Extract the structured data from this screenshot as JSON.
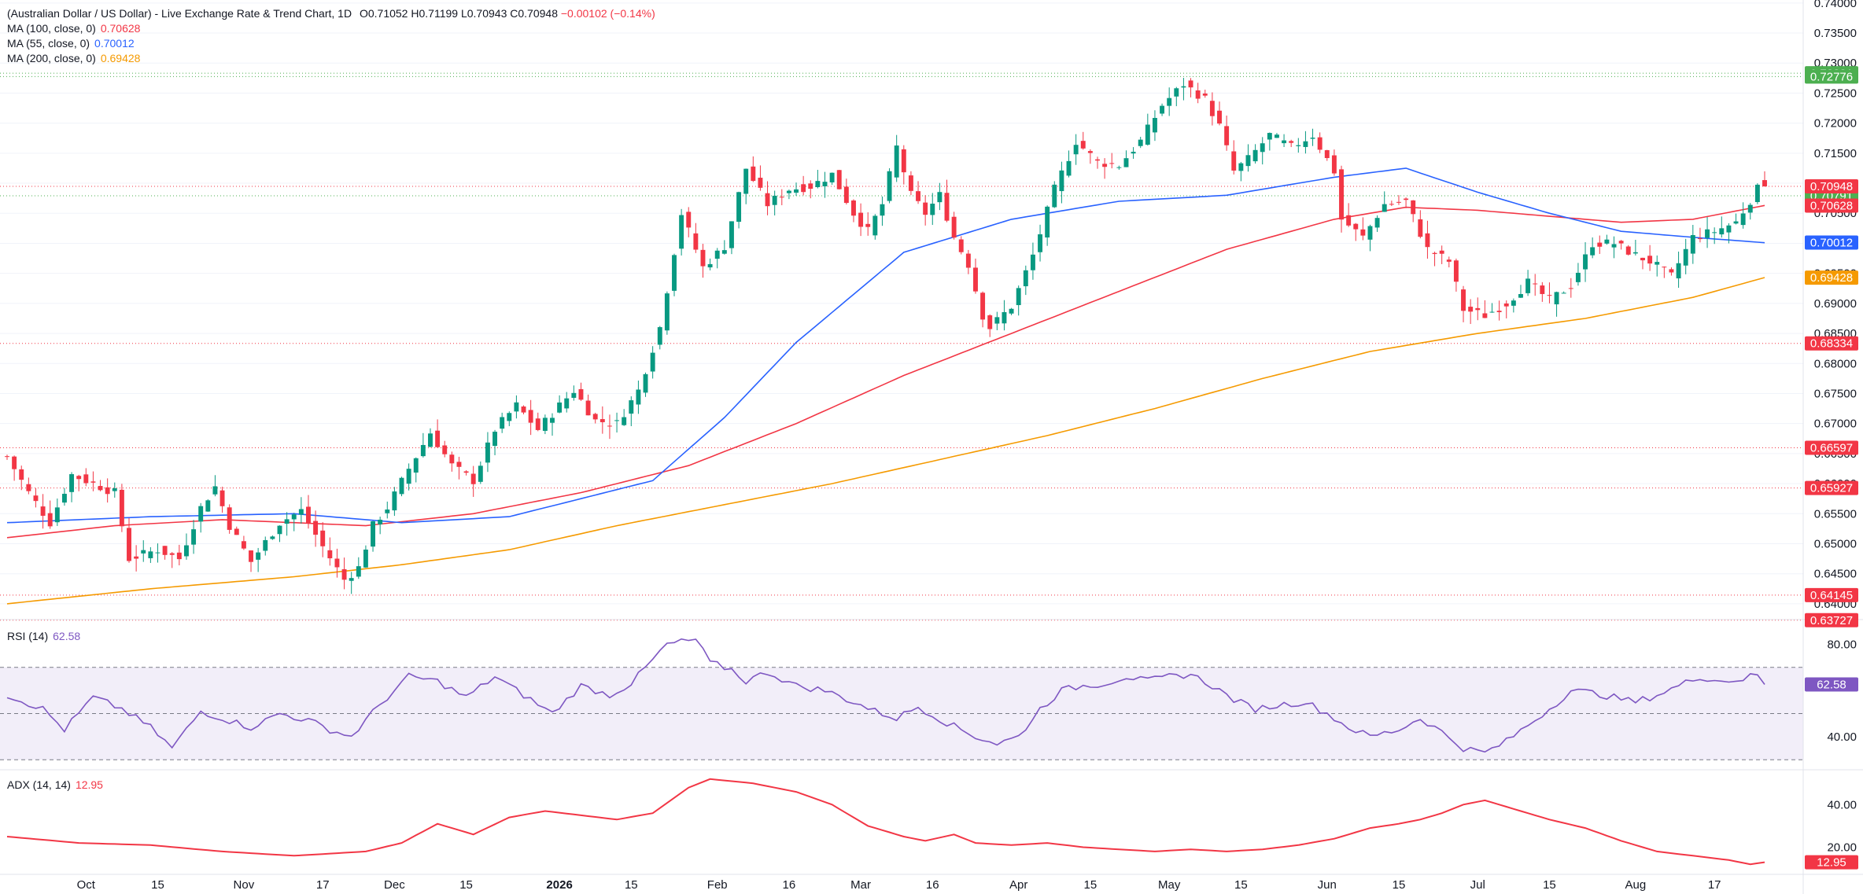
{
  "header": {
    "title": "(Australian Dollar / US Dollar) - Live Exchange Rate & Trend Chart, 1D",
    "ohlc": [
      {
        "label": "O",
        "value": "0.71052"
      },
      {
        "label": "H",
        "value": "0.71199"
      },
      {
        "label": "L",
        "value": "0.70943"
      },
      {
        "label": "C",
        "value": "0.70948"
      }
    ],
    "change": "−0.00102 (−0.14%)"
  },
  "legend": {
    "ma100": {
      "label": "MA (100, close, 0)",
      "value": "0.70628",
      "color": "#f23645"
    },
    "ma55": {
      "label": "MA (55, close, 0)",
      "value": "0.70012",
      "color": "#2962ff"
    },
    "ma200": {
      "label": "MA (200, close, 0)",
      "value": "0.69428",
      "color": "#f59a00"
    },
    "rsi": {
      "label": "RSI (14)",
      "value": "62.58",
      "color": "#7e57c2"
    },
    "adx": {
      "label": "ADX (14, 14)",
      "value": "12.95",
      "color": "#f23645"
    }
  },
  "colors": {
    "up": "#089981",
    "down": "#f23645",
    "price_tag": "#f23645",
    "green_tag": "#22ab94"
  },
  "chart_data": [
    {
      "type": "candlestick",
      "title": "(Australian Dollar / US Dollar) - Live Exchange Rate & Trend Chart, 1D",
      "y_ticks": [
        "0.74000",
        "0.73500",
        "0.73000",
        "0.72500",
        "0.72000",
        "0.71500",
        "0.71000",
        "0.70500",
        "0.70000",
        "0.69500",
        "0.69000",
        "0.68500",
        "0.68000",
        "0.67500",
        "0.67000",
        "0.66500",
        "0.66000",
        "0.65500",
        "0.65000",
        "0.64500",
        "0.64000"
      ],
      "ylim": [
        0.6375,
        0.7405
      ],
      "x_ticks": [
        {
          "label": "Oct",
          "bold": false,
          "idx": 11
        },
        {
          "label": "15",
          "bold": false,
          "idx": 21
        },
        {
          "label": "Nov",
          "bold": false,
          "idx": 33
        },
        {
          "label": "17",
          "bold": false,
          "idx": 44
        },
        {
          "label": "Dec",
          "bold": false,
          "idx": 54
        },
        {
          "label": "15",
          "bold": false,
          "idx": 64
        },
        {
          "label": "2026",
          "bold": true,
          "idx": 77
        },
        {
          "label": "15",
          "bold": false,
          "idx": 87
        },
        {
          "label": "Feb",
          "bold": false,
          "idx": 99
        },
        {
          "label": "16",
          "bold": false,
          "idx": 109
        },
        {
          "label": "Mar",
          "bold": false,
          "idx": 119
        },
        {
          "label": "16",
          "bold": false,
          "idx": 129
        },
        {
          "label": "Apr",
          "bold": false,
          "idx": 141
        },
        {
          "label": "15",
          "bold": false,
          "idx": 151
        },
        {
          "label": "May",
          "bold": false,
          "idx": 162
        },
        {
          "label": "15",
          "bold": false,
          "idx": 172
        },
        {
          "label": "Jun",
          "bold": false,
          "idx": 184
        },
        {
          "label": "15",
          "bold": false,
          "idx": 194
        },
        {
          "label": "Jul",
          "bold": false,
          "idx": 205
        },
        {
          "label": "15",
          "bold": false,
          "idx": 215
        },
        {
          "label": "Aug",
          "bold": false,
          "idx": 227
        },
        {
          "label": "17",
          "bold": false,
          "idx": 238
        }
      ],
      "anchors": [
        [
          0,
          0.6645
        ],
        [
          3,
          0.6585
        ],
        [
          6,
          0.6535
        ],
        [
          9,
          0.6615
        ],
        [
          12,
          0.66
        ],
        [
          15,
          0.6585
        ],
        [
          17,
          0.6475
        ],
        [
          21,
          0.649
        ],
        [
          24,
          0.6475
        ],
        [
          27,
          0.656
        ],
        [
          29,
          0.6595
        ],
        [
          31,
          0.653
        ],
        [
          34,
          0.647
        ],
        [
          38,
          0.6535
        ],
        [
          41,
          0.6555
        ],
        [
          44,
          0.6495
        ],
        [
          47,
          0.644
        ],
        [
          49,
          0.646
        ],
        [
          51,
          0.653
        ],
        [
          53,
          0.656
        ],
        [
          56,
          0.6625
        ],
        [
          59,
          0.6685
        ],
        [
          62,
          0.663
        ],
        [
          65,
          0.6605
        ],
        [
          68,
          0.669
        ],
        [
          71,
          0.673
        ],
        [
          74,
          0.669
        ],
        [
          77,
          0.673
        ],
        [
          79,
          0.6755
        ],
        [
          82,
          0.6705
        ],
        [
          85,
          0.67
        ],
        [
          88,
          0.6755
        ],
        [
          91,
          0.686
        ],
        [
          94,
          0.705
        ],
        [
          97,
          0.696
        ],
        [
          100,
          0.6995
        ],
        [
          103,
          0.7125
        ],
        [
          106,
          0.7065
        ],
        [
          109,
          0.709
        ],
        [
          112,
          0.7095
        ],
        [
          115,
          0.7115
        ],
        [
          118,
          0.705
        ],
        [
          120,
          0.702
        ],
        [
          122,
          0.7065
        ],
        [
          124,
          0.716
        ],
        [
          126,
          0.708
        ],
        [
          128,
          0.705
        ],
        [
          130,
          0.708
        ],
        [
          132,
          0.701
        ],
        [
          134,
          0.6965
        ],
        [
          136,
          0.688
        ],
        [
          137,
          0.686
        ],
        [
          140,
          0.6895
        ],
        [
          143,
          0.698
        ],
        [
          146,
          0.709
        ],
        [
          149,
          0.717
        ],
        [
          152,
          0.7135
        ],
        [
          155,
          0.713
        ],
        [
          158,
          0.717
        ],
        [
          161,
          0.723
        ],
        [
          164,
          0.7265
        ],
        [
          167,
          0.724
        ],
        [
          169,
          0.7195
        ],
        [
          171,
          0.712
        ],
        [
          173,
          0.714
        ],
        [
          176,
          0.718
        ],
        [
          179,
          0.716
        ],
        [
          182,
          0.718
        ],
        [
          185,
          0.712
        ],
        [
          186,
          0.704
        ],
        [
          189,
          0.701
        ],
        [
          192,
          0.7065
        ],
        [
          195,
          0.707
        ],
        [
          198,
          0.699
        ],
        [
          201,
          0.697
        ],
        [
          203,
          0.689
        ],
        [
          206,
          0.688
        ],
        [
          209,
          0.69
        ],
        [
          212,
          0.6935
        ],
        [
          215,
          0.6905
        ],
        [
          218,
          0.693
        ],
        [
          221,
          0.7
        ],
        [
          224,
          0.7
        ],
        [
          227,
          0.698
        ],
        [
          229,
          0.697
        ],
        [
          232,
          0.6945
        ],
        [
          235,
          0.701
        ],
        [
          238,
          0.702
        ],
        [
          241,
          0.7035
        ],
        [
          244,
          0.709
        ],
        [
          245,
          0.7095
        ]
      ],
      "closes_count": 246,
      "last": {
        "o": 0.71052,
        "h": 0.71199,
        "l": 0.70943,
        "c": 0.70948
      },
      "ma_anchors": {
        "ma55": [
          [
            0,
            0.6535
          ],
          [
            20,
            0.6545
          ],
          [
            40,
            0.655
          ],
          [
            55,
            0.6535
          ],
          [
            70,
            0.6545
          ],
          [
            80,
            0.6575
          ],
          [
            90,
            0.6605
          ],
          [
            100,
            0.671
          ],
          [
            110,
            0.6835
          ],
          [
            125,
            0.6985
          ],
          [
            140,
            0.704
          ],
          [
            155,
            0.707
          ],
          [
            170,
            0.708
          ],
          [
            185,
            0.711
          ],
          [
            195,
            0.7125
          ],
          [
            205,
            0.7085
          ],
          [
            215,
            0.705
          ],
          [
            225,
            0.702
          ],
          [
            235,
            0.701
          ],
          [
            245,
            0.7001
          ]
        ],
        "ma100": [
          [
            0,
            0.651
          ],
          [
            15,
            0.653
          ],
          [
            30,
            0.654
          ],
          [
            50,
            0.653
          ],
          [
            65,
            0.655
          ],
          [
            80,
            0.6585
          ],
          [
            95,
            0.663
          ],
          [
            110,
            0.67
          ],
          [
            125,
            0.678
          ],
          [
            140,
            0.685
          ],
          [
            155,
            0.692
          ],
          [
            170,
            0.699
          ],
          [
            185,
            0.704
          ],
          [
            195,
            0.706
          ],
          [
            205,
            0.7055
          ],
          [
            215,
            0.7045
          ],
          [
            225,
            0.7035
          ],
          [
            235,
            0.704
          ],
          [
            245,
            0.7063
          ]
        ],
        "ma200": [
          [
            0,
            0.64
          ],
          [
            20,
            0.6425
          ],
          [
            40,
            0.6445
          ],
          [
            55,
            0.6465
          ],
          [
            70,
            0.649
          ],
          [
            85,
            0.653
          ],
          [
            100,
            0.6565
          ],
          [
            115,
            0.66
          ],
          [
            130,
            0.664
          ],
          [
            145,
            0.668
          ],
          [
            160,
            0.6725
          ],
          [
            175,
            0.6775
          ],
          [
            190,
            0.682
          ],
          [
            205,
            0.685
          ],
          [
            220,
            0.6875
          ],
          [
            235,
            0.691
          ],
          [
            245,
            0.6943
          ]
        ]
      },
      "horizontal_levels": [
        {
          "value": 0.72831,
          "label": "0.72831",
          "color": "#4caf50"
        },
        {
          "value": 0.72776,
          "label": "0.72776",
          "color": "#4caf50"
        },
        {
          "value": 0.70791,
          "label": "0.70791",
          "color": "#4caf50"
        },
        {
          "value": 0.68334,
          "label": "0.68334",
          "color": "#f23645"
        },
        {
          "value": 0.66597,
          "label": "0.66597",
          "color": "#f23645"
        },
        {
          "value": 0.65927,
          "label": "0.65927",
          "color": "#f23645"
        },
        {
          "value": 0.64145,
          "label": "0.64145",
          "color": "#f23645"
        },
        {
          "value": 0.63727,
          "label": "0.63727",
          "color": "#f23645"
        }
      ],
      "price_tags": [
        {
          "value": 0.70948,
          "label": "0.70948",
          "color": "#f23645"
        },
        {
          "value": 0.70628,
          "label": "0.70628",
          "color": "#f23645"
        },
        {
          "value": 0.70012,
          "label": "0.70012",
          "color": "#2962ff"
        },
        {
          "value": 0.69428,
          "label": "0.69428",
          "color": "#f59a00"
        }
      ]
    },
    {
      "type": "line",
      "title": "RSI (14)",
      "ylim": [
        26,
        90
      ],
      "y_ticks": [
        "80.00",
        "40.00"
      ],
      "bands": [
        70,
        30
      ],
      "midline": 50,
      "anchors": [
        [
          0,
          58
        ],
        [
          5,
          52
        ],
        [
          8,
          43
        ],
        [
          12,
          57
        ],
        [
          16,
          52
        ],
        [
          20,
          44
        ],
        [
          23,
          35
        ],
        [
          27,
          51
        ],
        [
          30,
          48
        ],
        [
          34,
          44
        ],
        [
          38,
          50
        ],
        [
          42,
          47
        ],
        [
          45,
          43
        ],
        [
          48,
          40
        ],
        [
          52,
          54
        ],
        [
          56,
          66
        ],
        [
          60,
          64
        ],
        [
          64,
          57
        ],
        [
          68,
          66
        ],
        [
          72,
          58
        ],
        [
          76,
          50
        ],
        [
          80,
          62
        ],
        [
          84,
          58
        ],
        [
          87,
          63
        ],
        [
          92,
          80
        ],
        [
          96,
          82
        ],
        [
          98,
          72
        ],
        [
          101,
          69
        ],
        [
          103,
          64
        ],
        [
          106,
          68
        ],
        [
          110,
          62
        ],
        [
          114,
          60
        ],
        [
          118,
          55
        ],
        [
          121,
          51
        ],
        [
          124,
          48
        ],
        [
          127,
          53
        ],
        [
          131,
          46
        ],
        [
          135,
          40
        ],
        [
          138,
          37
        ],
        [
          141,
          40
        ],
        [
          144,
          52
        ],
        [
          147,
          60
        ],
        [
          150,
          62
        ],
        [
          153,
          63
        ],
        [
          156,
          66
        ],
        [
          159,
          64
        ],
        [
          162,
          66
        ],
        [
          165,
          67
        ],
        [
          168,
          62
        ],
        [
          171,
          56
        ],
        [
          174,
          52
        ],
        [
          178,
          54
        ],
        [
          181,
          55
        ],
        [
          184,
          50
        ],
        [
          187,
          44
        ],
        [
          190,
          40
        ],
        [
          194,
          43
        ],
        [
          197,
          48
        ],
        [
          200,
          42
        ],
        [
          203,
          35
        ],
        [
          206,
          33
        ],
        [
          209,
          38
        ],
        [
          212,
          45
        ],
        [
          215,
          52
        ],
        [
          218,
          60
        ],
        [
          221,
          59
        ],
        [
          224,
          57
        ],
        [
          227,
          55
        ],
        [
          230,
          58
        ],
        [
          233,
          62
        ],
        [
          236,
          66
        ],
        [
          239,
          64
        ],
        [
          242,
          65
        ],
        [
          244,
          67
        ],
        [
          245,
          62.58
        ]
      ]
    },
    {
      "type": "line",
      "title": "ADX (14, 14)",
      "ylim": [
        8,
        56
      ],
      "y_ticks": [
        "40.00",
        "20.00"
      ],
      "anchors": [
        [
          0,
          25
        ],
        [
          10,
          22
        ],
        [
          20,
          21
        ],
        [
          30,
          18
        ],
        [
          40,
          16
        ],
        [
          50,
          18
        ],
        [
          55,
          22
        ],
        [
          60,
          31
        ],
        [
          65,
          26
        ],
        [
          70,
          34
        ],
        [
          75,
          37
        ],
        [
          80,
          35
        ],
        [
          85,
          33
        ],
        [
          90,
          36
        ],
        [
          95,
          48
        ],
        [
          98,
          52
        ],
        [
          104,
          50
        ],
        [
          110,
          46
        ],
        [
          115,
          40
        ],
        [
          120,
          30
        ],
        [
          125,
          25
        ],
        [
          128,
          23
        ],
        [
          132,
          26
        ],
        [
          135,
          22
        ],
        [
          140,
          21
        ],
        [
          145,
          22
        ],
        [
          150,
          20
        ],
        [
          155,
          19
        ],
        [
          160,
          18
        ],
        [
          165,
          19
        ],
        [
          170,
          18
        ],
        [
          175,
          19
        ],
        [
          180,
          21
        ],
        [
          185,
          24
        ],
        [
          190,
          29
        ],
        [
          194,
          31
        ],
        [
          197,
          33
        ],
        [
          200,
          36
        ],
        [
          203,
          40
        ],
        [
          206,
          42
        ],
        [
          210,
          38
        ],
        [
          215,
          33
        ],
        [
          220,
          29
        ],
        [
          225,
          23
        ],
        [
          230,
          18
        ],
        [
          235,
          16
        ],
        [
          240,
          14
        ],
        [
          243,
          12
        ],
        [
          245,
          12.95
        ]
      ]
    }
  ]
}
